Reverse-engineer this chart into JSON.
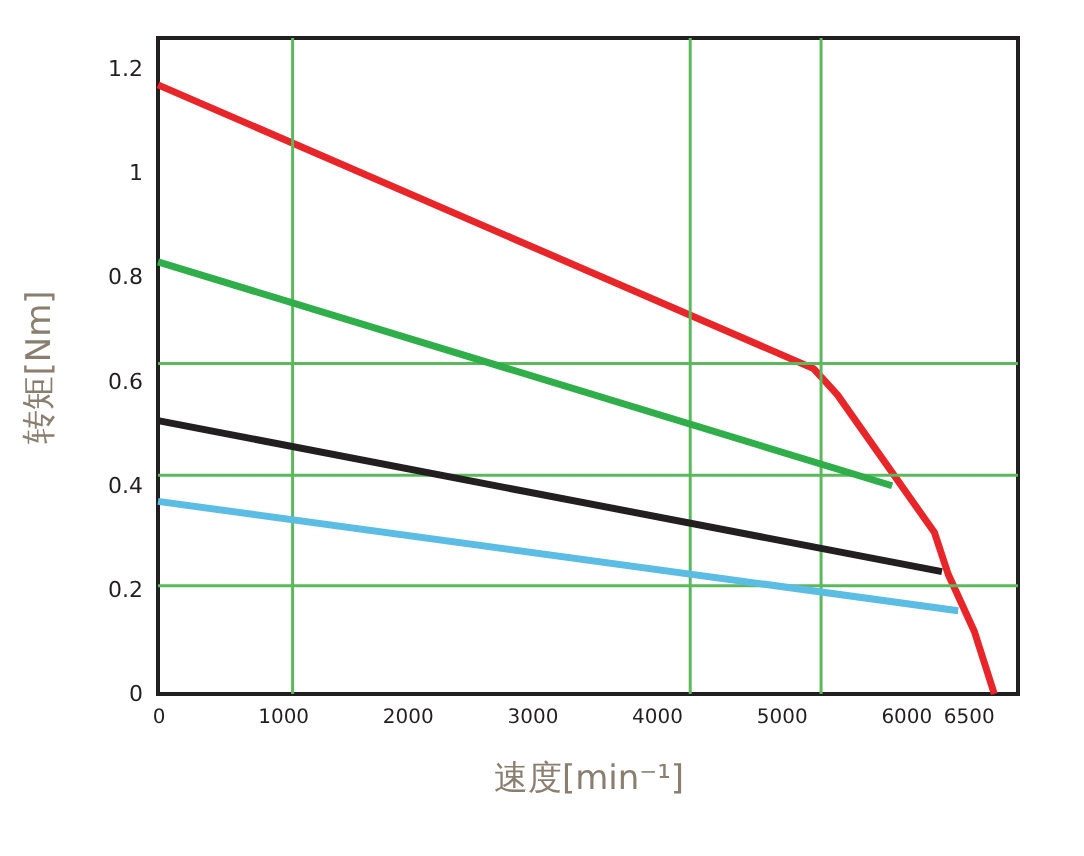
{
  "chart_data": {
    "type": "line",
    "xlabel": "速度[min⁻¹]",
    "ylabel": "转矩[Nm]",
    "xlim": [
      0,
      6900
    ],
    "ylim": [
      0,
      1.26
    ],
    "xticks": [
      0,
      1000,
      2000,
      3000,
      4000,
      5000,
      6000,
      6500
    ],
    "yticks": [
      0,
      0.2,
      0.4,
      0.6,
      0.8,
      1,
      1.2
    ],
    "marker": "none",
    "line_style": "solid",
    "series": [
      {
        "color": "#e8262a",
        "x": [
          0,
          5260,
          5450,
          6230,
          6340,
          6550,
          6710
        ],
        "values": [
          1.17,
          0.625,
          0.575,
          0.31,
          0.23,
          0.12,
          0
        ]
      },
      {
        "color": "#2fae4a",
        "x": [
          0,
          5890
        ],
        "values": [
          0.83,
          0.4
        ]
      },
      {
        "color": "#231f20",
        "x": [
          0,
          6290
        ],
        "values": [
          0.525,
          0.235
        ]
      },
      {
        "color": "#5bbce4",
        "x": [
          0,
          6420
        ],
        "values": [
          0.37,
          0.16
        ]
      }
    ],
    "ref_lines": [
      {
        "axis": "x",
        "value": 1080,
        "color": "#5cb85c"
      },
      {
        "axis": "x",
        "value": 4270,
        "color": "#5cb85c"
      },
      {
        "axis": "x",
        "value": 5320,
        "color": "#5cb85c"
      },
      {
        "axis": "y",
        "value": 0.635,
        "color": "#5cb85c"
      },
      {
        "axis": "y",
        "value": 0.42,
        "color": "#5cb85c"
      },
      {
        "axis": "y",
        "value": 0.208,
        "color": "#5cb85c"
      }
    ]
  }
}
